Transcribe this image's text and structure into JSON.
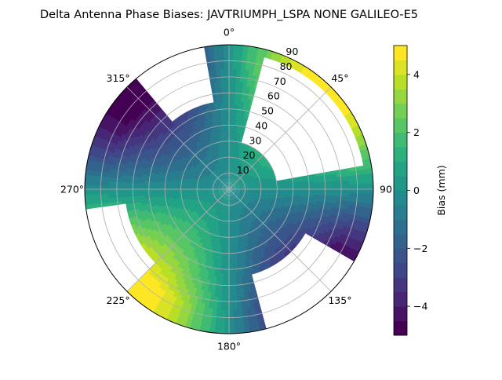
{
  "chart_data": {
    "type": "heatmap",
    "projection": "polar",
    "title": "Delta Antenna Phase Biases: JAVTRIUMPH_LSPA NONE GALILEO-E5",
    "theta_zero_location": "top",
    "theta_direction": "clockwise",
    "angular_ticks": [
      "0°",
      "45°",
      "90",
      "135°",
      "180°",
      "225°",
      "270°",
      "315°"
    ],
    "radial_ticks": [
      "10",
      "20",
      "30",
      "40",
      "50",
      "60",
      "70",
      "80",
      "90"
    ],
    "radial_range": [
      0,
      90
    ],
    "radial_tick_angle_deg": 22.5,
    "grid": true,
    "colormap": "viridis",
    "colorbar": {
      "label": "Bias (mm)",
      "ticks": [
        "−4",
        "−2",
        "0",
        "2",
        "4"
      ],
      "tick_values": [
        -4,
        -2,
        0,
        2,
        4
      ],
      "range": [
        -5,
        5
      ],
      "levels": [
        -5,
        -4.5,
        -4,
        -3.5,
        -3,
        -2.5,
        -2,
        -1.5,
        -1,
        -0.5,
        0,
        0.5,
        1,
        1.5,
        2,
        2.5,
        3,
        3.5,
        4,
        4.5,
        5
      ],
      "placement": "right"
    },
    "pattern": {
      "description": "Quadrupolar bias field",
      "center_value": 0,
      "positive_lobe_azimuths_deg": [
        45,
        270
      ],
      "negative_lobe_azimuths_deg": [
        135,
        315
      ],
      "peak_abs_value_mm": 5,
      "masked_regions": [
        {
          "azimuth_range_deg": [
            320,
            350
          ],
          "elevation_range_deg": [
            55,
            90
          ]
        },
        {
          "azimuth_range_deg": [
            15,
            80
          ],
          "elevation_range_deg": [
            30,
            85
          ]
        },
        {
          "azimuth_range_deg": [
            120,
            165
          ],
          "elevation_range_deg": [
            55,
            90
          ]
        },
        {
          "azimuth_range_deg": [
            225,
            262
          ],
          "elevation_range_deg": [
            65,
            90
          ]
        }
      ]
    },
    "colors": {
      "viridis": [
        "#440154",
        "#482475",
        "#414487",
        "#355f8d",
        "#2a788e",
        "#21918c",
        "#22a884",
        "#44bf70",
        "#7ad151",
        "#bddf26",
        "#fde725"
      ]
    }
  }
}
